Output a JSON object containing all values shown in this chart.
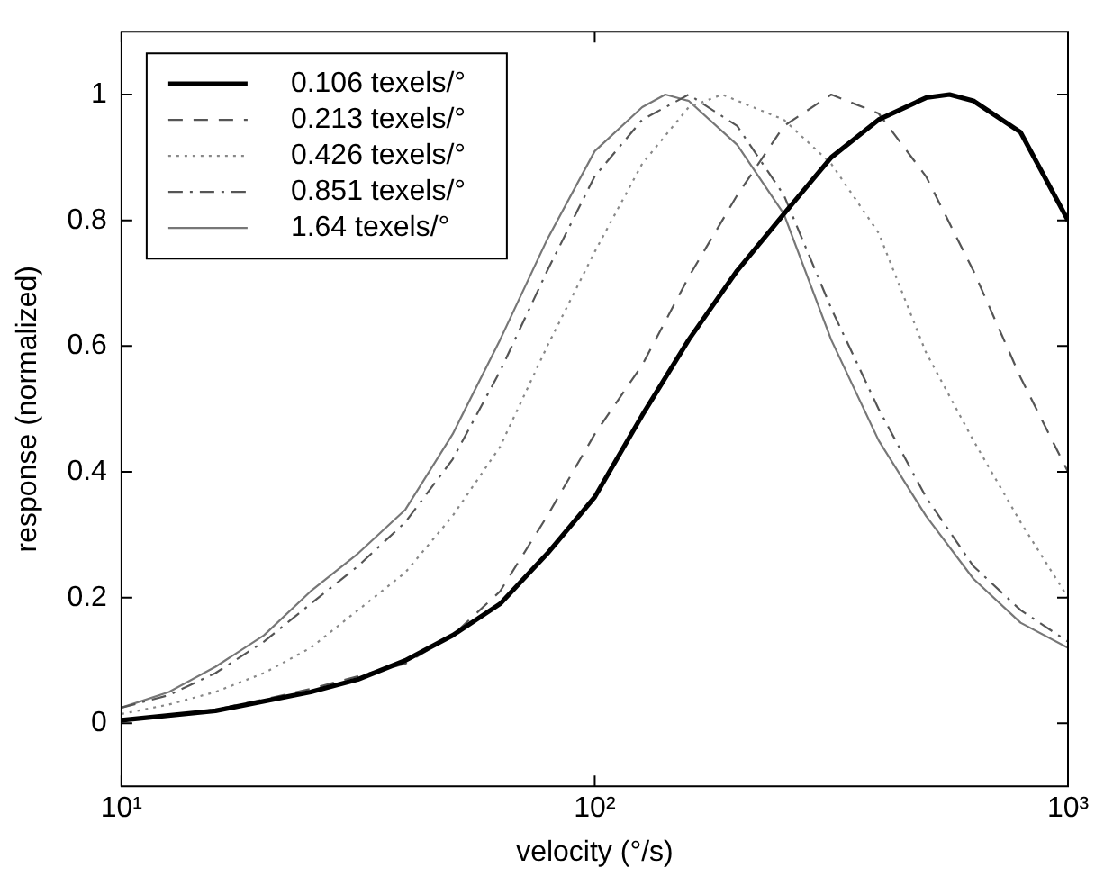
{
  "chart_data": {
    "type": "line",
    "xlabel": "velocity (°/s)",
    "ylabel": "response (normalized)",
    "log": "x",
    "xlim": [
      10,
      1000
    ],
    "xticks": [
      {
        "value": 10,
        "label": "10¹"
      },
      {
        "value": 100,
        "label": "10²"
      },
      {
        "value": 1000,
        "label": "10³"
      }
    ],
    "ylim": [
      -0.1,
      1.1
    ],
    "yticks": [
      0,
      0.2,
      0.4,
      0.6,
      0.8,
      1
    ],
    "grid": false,
    "legend": "top left",
    "marker": "none",
    "series": [
      {
        "name": "0.106 texels/°",
        "color": "#000000",
        "line_style": "solid",
        "x": [
          10,
          15.8,
          25.1,
          31.6,
          39.8,
          50.1,
          63.1,
          79.4,
          100,
          126,
          158,
          200,
          251,
          316,
          398,
          501,
          562,
          631,
          794,
          1000
        ],
        "values": [
          0.005,
          0.02,
          0.05,
          0.07,
          0.1,
          0.14,
          0.19,
          0.27,
          0.36,
          0.49,
          0.61,
          0.72,
          0.81,
          0.9,
          0.96,
          0.995,
          1.0,
          0.99,
          0.94,
          0.8
        ]
      },
      {
        "name": "0.213 texels/°",
        "color": "#555555",
        "line_style": "dashed",
        "x": [
          10,
          12.6,
          15.8,
          20,
          25.1,
          31.6,
          39.8,
          50.1,
          63.1,
          79.4,
          100,
          126,
          158,
          200,
          251,
          316,
          398,
          501,
          631,
          794,
          1000
        ],
        "values": [
          0.005,
          0.012,
          0.022,
          0.038,
          0.055,
          0.075,
          0.095,
          0.14,
          0.21,
          0.33,
          0.46,
          0.57,
          0.71,
          0.84,
          0.95,
          1.0,
          0.97,
          0.87,
          0.72,
          0.55,
          0.4
        ]
      },
      {
        "name": "0.426 texels/°",
        "color": "#888888",
        "line_style": "dotted",
        "x": [
          10,
          12.6,
          15.8,
          20,
          25.1,
          31.6,
          39.8,
          50.1,
          63.1,
          79.4,
          100,
          126,
          158,
          186,
          251,
          316,
          398,
          501,
          631,
          794,
          1000
        ],
        "values": [
          0.015,
          0.03,
          0.05,
          0.08,
          0.12,
          0.18,
          0.24,
          0.33,
          0.44,
          0.6,
          0.75,
          0.89,
          0.98,
          1.0,
          0.96,
          0.89,
          0.78,
          0.59,
          0.45,
          0.32,
          0.2
        ]
      },
      {
        "name": "0.851 texels/°",
        "color": "#555555",
        "line_style": "dashdot",
        "x": [
          10,
          12.6,
          15.8,
          20,
          25.1,
          31.6,
          39.8,
          50.1,
          63.1,
          79.4,
          100,
          126,
          158,
          200,
          251,
          316,
          398,
          501,
          631,
          794,
          1000
        ],
        "values": [
          0.025,
          0.045,
          0.08,
          0.13,
          0.19,
          0.25,
          0.32,
          0.42,
          0.56,
          0.72,
          0.87,
          0.96,
          1.0,
          0.95,
          0.84,
          0.66,
          0.5,
          0.36,
          0.25,
          0.18,
          0.13
        ]
      },
      {
        "name": "1.64 texels/°",
        "color": "#777777",
        "line_style": "solid",
        "x": [
          10,
          12.6,
          15.8,
          20,
          25.1,
          31.6,
          39.8,
          50.1,
          63.1,
          79.4,
          100,
          126,
          141,
          158,
          200,
          251,
          316,
          398,
          501,
          631,
          794,
          1000
        ],
        "values": [
          0.025,
          0.05,
          0.09,
          0.14,
          0.21,
          0.27,
          0.34,
          0.46,
          0.61,
          0.77,
          0.91,
          0.98,
          1.0,
          0.99,
          0.92,
          0.81,
          0.61,
          0.45,
          0.33,
          0.23,
          0.16,
          0.12
        ]
      }
    ]
  }
}
